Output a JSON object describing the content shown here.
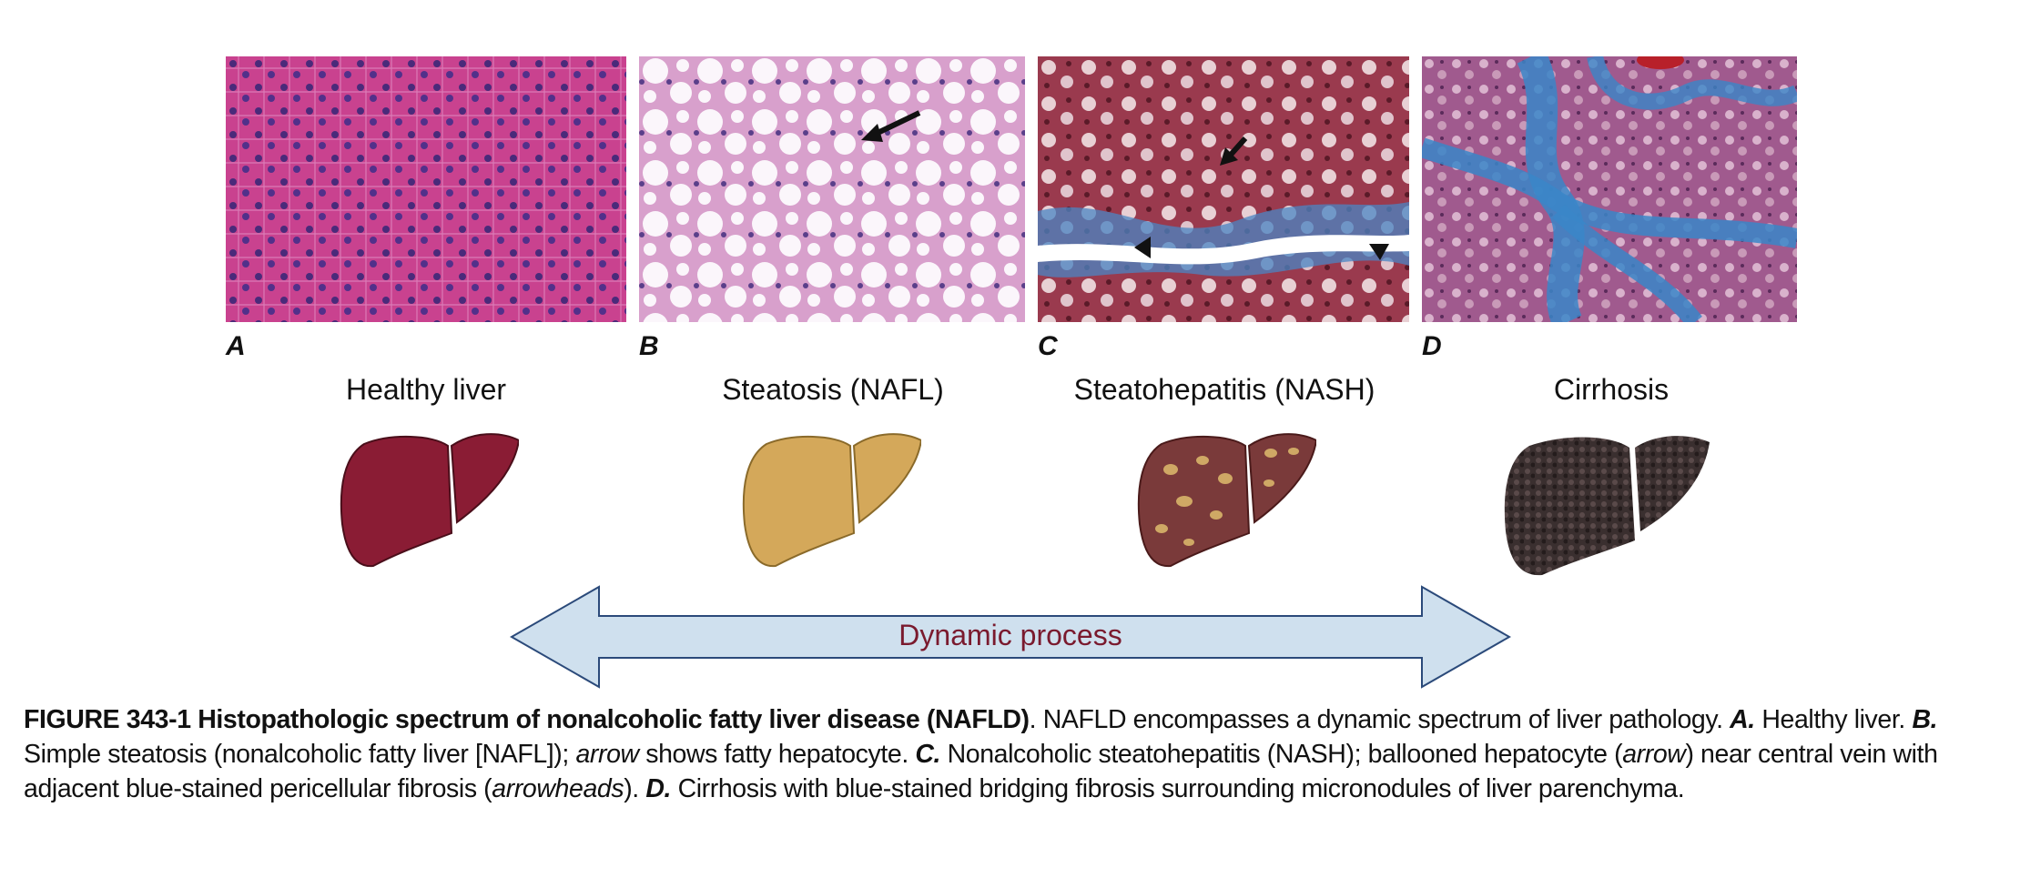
{
  "panels": [
    {
      "letter": "A",
      "stage": "Healthy liver"
    },
    {
      "letter": "B",
      "stage": "Steatosis (NAFL)"
    },
    {
      "letter": "C",
      "stage": "Steatohepatitis (NASH)"
    },
    {
      "letter": "D",
      "stage": "Cirrhosis"
    }
  ],
  "arrow_label": "Dynamic process",
  "caption": {
    "figure_number": "FIGURE 343-1",
    "title": "Histopathologic spectrum of nonalcoholic fatty liver disease (NAFLD)",
    "intro": ". NAFLD encompasses a dynamic spectrum of liver pathology. ",
    "a_letter": "A.",
    "a_text": " Healthy liver.",
    "b_letter": "B.",
    "b_text_1": " Simple steatosis (nonalcoholic fatty liver [NAFL]); ",
    "b_italic": "arrow",
    "b_text_2": " shows fatty hepatocyte. ",
    "c_letter": "C.",
    "c_text_1": " Nonalcoholic steatohepatitis (NASH); ballooned hepatocyte (",
    "c_italic_1": "arrow",
    "c_text_2": ") near central vein with adjacent blue-stained pericellular fibrosis (",
    "c_italic_2": "arrowheads",
    "c_text_3": "). ",
    "d_letter": "D.",
    "d_text": " Cirrhosis with blue-stained bridging fibrosis surrounding micronodules of liver parenchyma."
  },
  "colors": {
    "healthy_liver": "#8a1c34",
    "steatosis_liver": "#d4a85a",
    "nash_liver": "#7a3a3a",
    "nash_spots": "#d9b46a",
    "cirrhosis_liver": "#3a2f2f",
    "arrow_fill": "#cfe0ee",
    "arrow_stroke": "#2b4a7a",
    "arrow_text": "#7a1a2e"
  }
}
